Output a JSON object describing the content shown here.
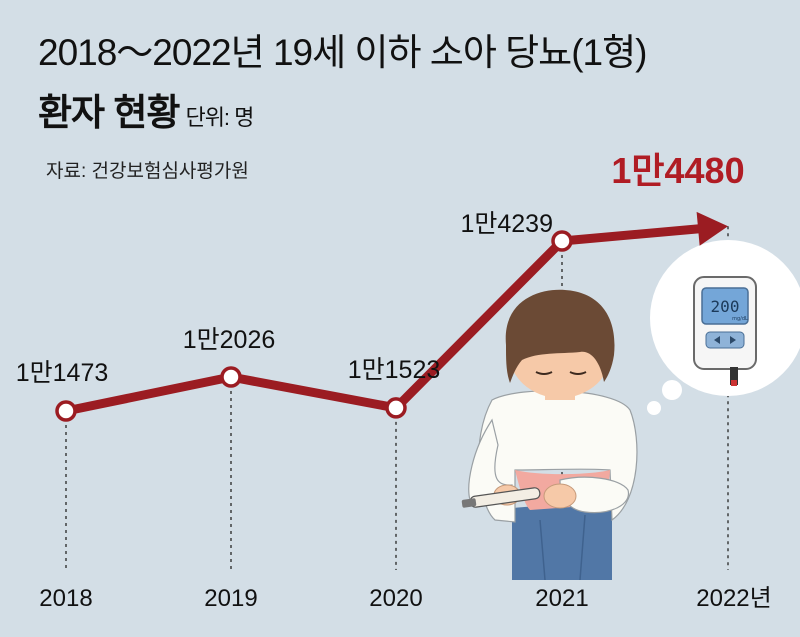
{
  "header": {
    "title_line1": "2018～2022년 19세 이하 소아 당뇨(1형)",
    "title_line2": "환자 현황",
    "unit": "단위: 명",
    "source": "자료: 건강보험심사평가원"
  },
  "chart_data": {
    "type": "line",
    "categories": [
      "2018",
      "2019",
      "2020",
      "2021",
      "2022년"
    ],
    "values": [
      11473,
      12026,
      11523,
      14239,
      14480
    ],
    "data_labels": [
      "1만1473",
      "1만2026",
      "1만1523",
      "1만4239",
      "1만4480"
    ],
    "highlight_index": 4,
    "colors": {
      "line": "#9b1c22",
      "highlight_text": "#b01c24",
      "background": "#d3dee6"
    }
  },
  "illustration": {
    "glucose_meter_reading": "200",
    "glucose_meter_unit": "mg/dL"
  }
}
